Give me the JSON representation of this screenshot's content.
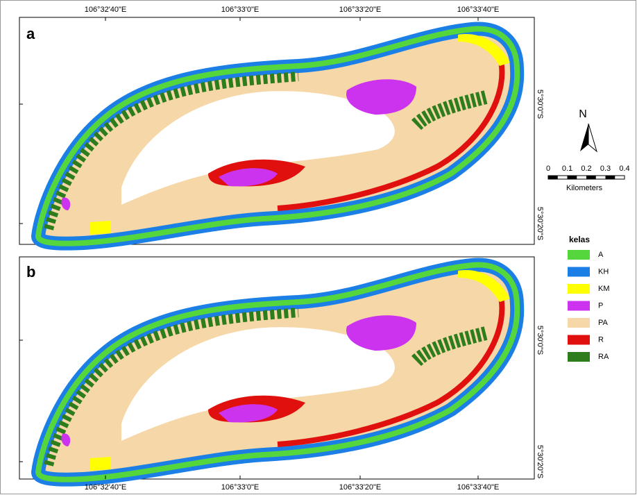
{
  "panels": [
    {
      "label": "a"
    },
    {
      "label": "b"
    }
  ],
  "top_coords": [
    "106°32'40\"E",
    "106°33'0\"E",
    "106°33'20\"E",
    "106°33'40\"E"
  ],
  "bottom_coords": [
    "106°32'40\"E",
    "106°33'0\"E",
    "106°33'20\"E",
    "106°33'40\"E"
  ],
  "right_coords": [
    "5°30'0\"S",
    "5°30'20\"S"
  ],
  "north": "N",
  "scale": {
    "ticks": [
      0,
      0.1,
      0.2,
      0.3,
      0.4
    ],
    "unit": "Kilometers"
  },
  "legend": {
    "title": "kelas",
    "items": [
      {
        "name": "A",
        "color": "#55d63c"
      },
      {
        "name": "KH",
        "color": "#1b7fe6"
      },
      {
        "name": "KM",
        "color": "#ffff00"
      },
      {
        "name": "P",
        "color": "#cc33ee"
      },
      {
        "name": "PA",
        "color": "#f6d7a7"
      },
      {
        "name": "R",
        "color": "#e0100e"
      },
      {
        "name": "RA",
        "color": "#2e7d1c"
      }
    ]
  }
}
